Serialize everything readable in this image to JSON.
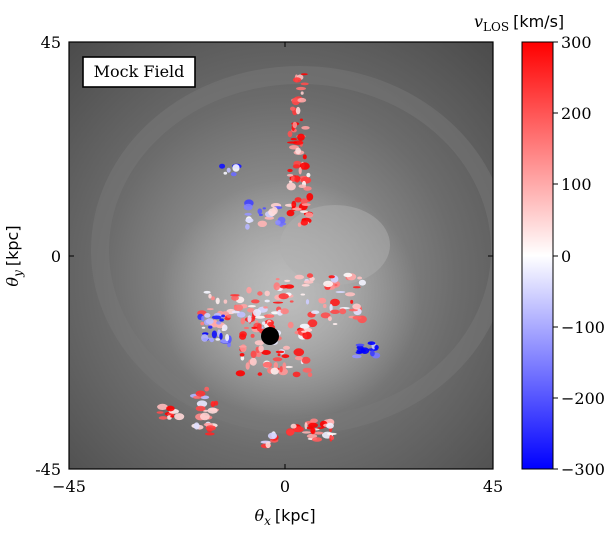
{
  "panel": {
    "label": "Mock Field"
  },
  "axes": {
    "x": {
      "symbol": "θ",
      "subscript": "x",
      "unit": "[kpc]",
      "ticks": [
        "−45",
        "0",
        "45"
      ]
    },
    "y": {
      "symbol": "θ",
      "subscript": "y",
      "unit": "[kpc]",
      "ticks": [
        "45",
        "0",
        "-45"
      ]
    }
  },
  "colorbar": {
    "symbol": "v",
    "subscript": "LOS",
    "unit": "[km/s]",
    "ticks": [
      "300",
      "200",
      "100",
      "0",
      "−100",
      "−200",
      "−300"
    ],
    "colors": {
      "max": "#ff0000",
      "mid": "#ffffff",
      "min": "#0000ff"
    }
  }
}
